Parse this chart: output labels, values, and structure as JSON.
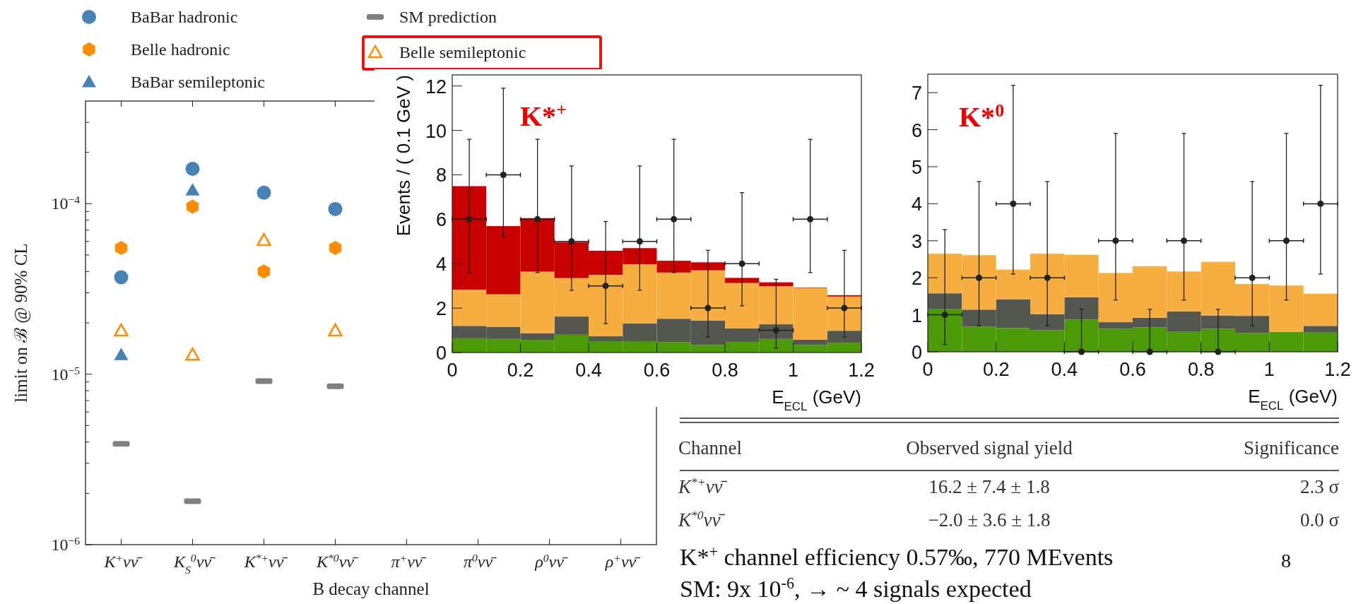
{
  "chart_data": [
    {
      "type": "scatter",
      "categories": [
        "K$^{+}$νν̄",
        "K$_{S}$$^{0}$νν̄",
        "K$^{*+}$νν̄",
        "K$^{*0}$νν̄",
        "π$^{+}$νν̄",
        "π$^{0}$νν̄",
        "ρ$^{0}$νν̄",
        "ρ$^{+}$νν̄"
      ],
      "xlabel": "B decay channel",
      "ylabel": "limit on ℬ @ 90% CL",
      "log": true,
      "legend": "top",
      "ylim": [
        1e-06,
        0.0004
      ],
      "yticks": [
        {
          "value": 1e-06,
          "label": "10$^{−6}$"
        },
        {
          "value": 2e-06,
          "label": null
        },
        {
          "value": 3e-06,
          "label": null
        },
        {
          "value": 4e-06,
          "label": null
        },
        {
          "value": 5e-06,
          "label": null
        },
        {
          "value": 6e-06,
          "label": null
        },
        {
          "value": 7e-06,
          "label": null
        },
        {
          "value": 8e-06,
          "label": null
        },
        {
          "value": 9e-06,
          "label": null
        },
        {
          "value": 1e-05,
          "label": "10$^{−5}$"
        },
        {
          "value": 2e-05,
          "label": null
        },
        {
          "value": 3e-05,
          "label": null
        },
        {
          "value": 4e-05,
          "label": null
        },
        {
          "value": 5e-05,
          "label": null
        },
        {
          "value": 6e-05,
          "label": null
        },
        {
          "value": 7e-05,
          "label": null
        },
        {
          "value": 8e-05,
          "label": null
        },
        {
          "value": 9e-05,
          "label": null
        },
        {
          "value": 0.0001,
          "label": "10$^{−4}$"
        },
        {
          "value": 0.0002,
          "label": null
        },
        {
          "value": 0.0003,
          "label": null
        }
      ],
      "series": [
        {
          "name": "BaBar hadronic",
          "color": "#4682b4",
          "marker": "circle",
          "values": [
            3.7e-05,
            0.00016,
            0.000116,
            9.3e-05,
            null,
            null,
            null,
            null
          ]
        },
        {
          "name": "Belle hadronic",
          "color": "#ff8c00",
          "values": [
            5.5e-05,
            9.6e-05,
            4e-05,
            5.5e-05,
            null,
            null,
            null,
            null
          ]
        },
        {
          "name": "BaBar semileptonic",
          "color": "#4682b4",
          "marker": "triangle",
          "values": [
            1.3e-05,
            0.00012,
            null,
            null,
            null,
            null,
            null,
            null
          ]
        },
        {
          "name": "SM prediction",
          "color": "#808080",
          "values": [
            3.9e-06,
            1.8e-06,
            9.1e-06,
            8.5e-06,
            null,
            null,
            null,
            null
          ]
        },
        {
          "name": "Belle semileptonic",
          "color": "#ff8c00",
          "marker": "triangle-open",
          "values": [
            1.8e-05,
            1.3e-05,
            6.1e-05,
            1.8e-05,
            null,
            null,
            null,
            null
          ]
        }
      ]
    },
    {
      "type": "bar",
      "stacked": true,
      "x": [
        0.05,
        0.15,
        0.25,
        0.35,
        0.45,
        0.55,
        0.65,
        0.75,
        0.85,
        0.95,
        1.05,
        1.15
      ],
      "ylabel": "Events / ( 0.1 GeV )",
      "xlabel": "E$_{ECL}$ (GeV)",
      "annotations": [
        "K*$^{+}$"
      ],
      "xlim": [
        0,
        1.2
      ],
      "ylim": [
        0,
        12.5
      ],
      "xticks": [
        0,
        0.2,
        0.4,
        0.6,
        0.8,
        1,
        1.2
      ],
      "yticks": [
        0,
        2,
        4,
        6,
        8,
        10,
        12
      ],
      "series": [
        {
          "color": "#4c9a07",
          "values": [
            0.64,
            0.61,
            0.57,
            0.8,
            0.51,
            0.51,
            0.47,
            0.34,
            0.48,
            0.61,
            0.34,
            0.44
          ]
        },
        {
          "color": "#545650",
          "values": [
            0.56,
            0.54,
            0.3,
            0.82,
            0.22,
            0.8,
            1.05,
            1.1,
            0.6,
            0.66,
            0.24,
            0.54
          ]
        },
        {
          "color": "#f6ae40",
          "values": [
            1.63,
            1.47,
            2.77,
            1.73,
            2.77,
            2.66,
            2.08,
            2.26,
            2.05,
            1.71,
            2.32,
            1.54
          ]
        },
        {
          "color": "#c80000",
          "values": [
            4.66,
            3.07,
            2.41,
            1.62,
            1.08,
            0.73,
            0.53,
            0.36,
            0.23,
            0.18,
            0.02,
            0.06
          ]
        },
        {
          "type": "scatter",
          "color": "#222222",
          "x": [
            0.05,
            0.15,
            0.25,
            0.35,
            0.45,
            0.55,
            0.65,
            0.75,
            0.85,
            0.95,
            1.05,
            1.15
          ],
          "values": [
            6,
            8,
            6,
            5,
            3,
            5,
            6,
            2,
            4,
            1,
            6,
            2
          ],
          "errors": [
            [
              3.6,
              9.6
            ],
            [
              5.2,
              11.9
            ],
            [
              3.6,
              9.6
            ],
            [
              2.8,
              8.4
            ],
            [
              1.3,
              5.9
            ],
            [
              2.8,
              8.4
            ],
            [
              3.6,
              9.6
            ],
            [
              0.7,
              4.6
            ],
            [
              2.1,
              7.2
            ],
            [
              0.2,
              3.3
            ],
            [
              3.6,
              9.6
            ],
            [
              0.7,
              4.6
            ]
          ],
          "xerrors": [
            0.05,
            0.05,
            0.05,
            0.05,
            0.05,
            0.05,
            0.05,
            0.05,
            0.05,
            0.05,
            0.05,
            0.05
          ]
        }
      ]
    },
    {
      "type": "bar",
      "stacked": true,
      "x": [
        0.05,
        0.15,
        0.25,
        0.35,
        0.45,
        0.55,
        0.65,
        0.75,
        0.85,
        0.95,
        1.05,
        1.15
      ],
      "xlabel": "E$_{ECL}$ (GeV)",
      "annotations": [
        "K*$^{0}$"
      ],
      "xlim": [
        0,
        1.2
      ],
      "ylim": [
        0,
        7.5
      ],
      "xticks": [
        0,
        0.2,
        0.4,
        0.6,
        0.8,
        1,
        1.2
      ],
      "yticks": [
        0,
        1,
        2,
        3,
        4,
        5,
        6,
        7
      ],
      "series": [
        {
          "color": "#4c9a07",
          "values": [
            1.15,
            0.68,
            0.64,
            0.58,
            0.87,
            0.62,
            0.66,
            0.54,
            0.62,
            0.51,
            0.54,
            0.52
          ]
        },
        {
          "color": "#545650",
          "values": [
            0.43,
            0.46,
            0.78,
            0.44,
            0.6,
            0.18,
            0.26,
            0.55,
            0.36,
            0.46,
            0,
            0.18
          ]
        },
        {
          "color": "#f6ae40",
          "values": [
            1.07,
            1.47,
            0.8,
            1.63,
            1.15,
            1.33,
            1.39,
            1.08,
            1.45,
            0.86,
            1.25,
            0.87
          ]
        },
        {
          "type": "scatter",
          "color": "#222222",
          "x": [
            0.05,
            0.15,
            0.25,
            0.35,
            0.45,
            0.55,
            0.65,
            0.75,
            0.85,
            0.95,
            1.05,
            1.15
          ],
          "values": [
            1,
            2,
            4,
            2,
            0,
            3,
            0,
            3,
            0,
            2,
            3,
            4
          ],
          "errors": [
            [
              0.2,
              3.3
            ],
            [
              0.7,
              4.6
            ],
            [
              2.1,
              7.2
            ],
            [
              0.7,
              4.6
            ],
            [
              0,
              1.15
            ],
            [
              1.4,
              5.9
            ],
            [
              0,
              1.15
            ],
            [
              1.4,
              5.9
            ],
            [
              0,
              1.15
            ],
            [
              0.7,
              4.6
            ],
            [
              1.4,
              5.9
            ],
            [
              2.1,
              7.2
            ]
          ],
          "xerrors": [
            0.05,
            0.05,
            0.05,
            0.05,
            0.05,
            0.05,
            0.05,
            0.05,
            0.05,
            0.05,
            0.05,
            0.05
          ]
        }
      ]
    },
    {
      "type": "other",
      "annotations": [
        "Channel",
        "Observed signal yield",
        "Significance",
        "K$^{*+}$νν̄",
        "16.2 ±   7.4 ± 1.8",
        "2.3 σ",
        "K$^{*0}$νν̄",
        "−2.0 ±   3.6 ± 1.8",
        "0.0 σ",
        "K*$^{+}$ channel efficiency 0.57‰, 770 MEvents",
        "8",
        "SM: 9x 10$^{-6}$,  → ~ 4 signals expected"
      ]
    }
  ]
}
